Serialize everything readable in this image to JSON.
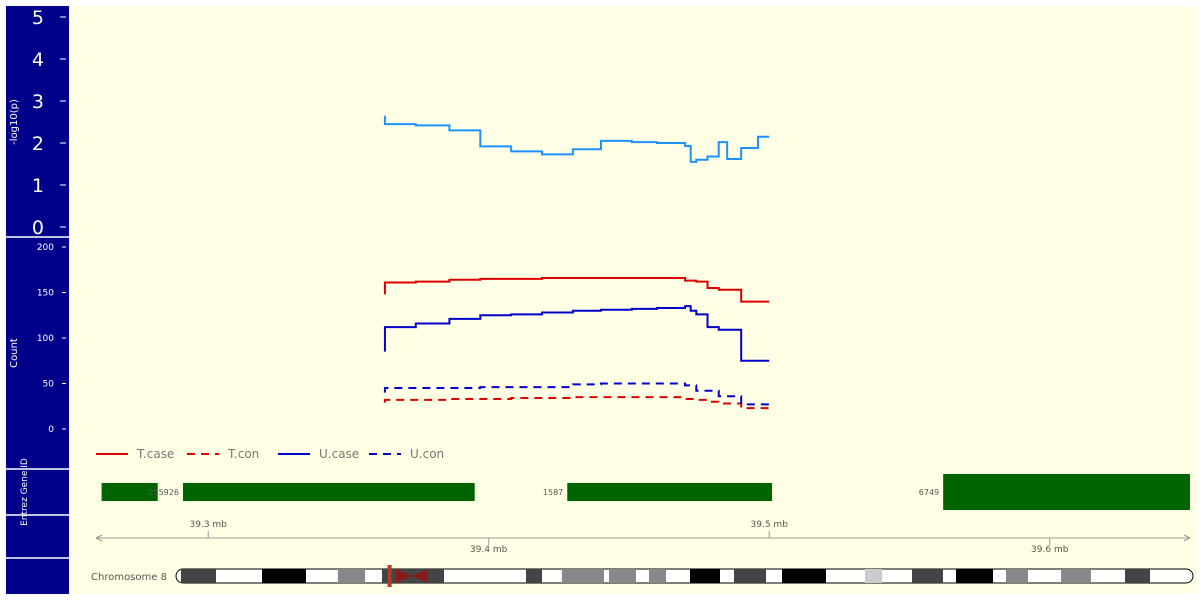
{
  "colors": {
    "panel_bg": "#FFFFE5",
    "sidebar_bg": "#00008B",
    "pval_line": "#1E90FF",
    "red": "#DD0000",
    "blue": "#0000CC",
    "gene_fill": "#006400",
    "centromere": "#8B1A1A"
  },
  "chart_data": [
    {
      "type": "line",
      "panel": "pvalue",
      "ylabel": "-log10(p)",
      "ylim": [
        0,
        5
      ],
      "yticks": [
        "0",
        "1",
        "2",
        "3",
        "4",
        "5"
      ],
      "series": [
        {
          "x": [
            39.363,
            39.363,
            39.374,
            39.386,
            39.397,
            39.408,
            39.419,
            39.43,
            39.44,
            39.451,
            39.46,
            39.47,
            39.472,
            39.474,
            39.478,
            39.482,
            39.485,
            39.49,
            39.496,
            39.5
          ],
          "y": [
            2.65,
            2.45,
            2.42,
            2.3,
            1.92,
            1.8,
            1.73,
            1.85,
            2.05,
            2.02,
            2.0,
            1.93,
            1.55,
            1.6,
            1.68,
            2.02,
            1.62,
            1.88,
            2.15,
            2.15
          ]
        }
      ]
    },
    {
      "type": "line",
      "panel": "counts",
      "ylabel": "Count",
      "ylim": [
        0,
        200
      ],
      "yticks": [
        "0",
        "50",
        "100",
        "150",
        "200"
      ],
      "series": [
        {
          "name": "T.case",
          "x": [
            39.363,
            39.363,
            39.374,
            39.386,
            39.397,
            39.408,
            39.419,
            39.43,
            39.44,
            39.451,
            39.46,
            39.47,
            39.474,
            39.478,
            39.482,
            39.49,
            39.5
          ],
          "y": [
            148,
            161,
            162,
            164,
            165,
            165,
            166,
            166,
            166,
            166,
            166,
            163,
            162,
            155,
            153,
            140,
            140
          ]
        },
        {
          "name": "T.con",
          "x": [
            39.363,
            39.363,
            39.374,
            39.386,
            39.397,
            39.408,
            39.419,
            39.43,
            39.44,
            39.451,
            39.46,
            39.47,
            39.474,
            39.478,
            39.482,
            39.49,
            39.5
          ],
          "y": [
            29,
            32,
            32,
            33,
            33,
            34,
            34,
            35,
            35,
            35,
            35,
            33,
            32,
            30,
            28,
            23,
            23
          ]
        },
        {
          "name": "U.case",
          "x": [
            39.363,
            39.363,
            39.374,
            39.386,
            39.397,
            39.408,
            39.419,
            39.43,
            39.44,
            39.451,
            39.46,
            39.47,
            39.472,
            39.474,
            39.478,
            39.482,
            39.49,
            39.49,
            39.5
          ],
          "y": [
            85,
            112,
            116,
            121,
            125,
            126,
            128,
            130,
            131,
            132,
            133,
            135,
            130,
            126,
            112,
            109,
            109,
            75,
            75
          ]
        },
        {
          "name": "U.con",
          "x": [
            39.363,
            39.363,
            39.374,
            39.386,
            39.397,
            39.408,
            39.419,
            39.43,
            39.44,
            39.451,
            39.46,
            39.47,
            39.474,
            39.478,
            39.482,
            39.49,
            39.5
          ],
          "y": [
            40,
            45,
            45,
            45,
            46,
            46,
            46,
            49,
            50,
            50,
            50,
            48,
            42,
            42,
            36,
            27,
            27
          ]
        }
      ],
      "legend": [
        "T.case",
        "T.con",
        "U.case",
        "U.con"
      ],
      "legend_placement": "bottom-left"
    }
  ],
  "genes": {
    "label": "Entrez Gene ID",
    "items": [
      {
        "id": "",
        "start": 39.262,
        "end": 39.282,
        "row": 0
      },
      {
        "id": "255926",
        "start": 39.291,
        "end": 39.395,
        "row": 0
      },
      {
        "id": "1587",
        "start": 39.428,
        "end": 39.501,
        "row": 0
      },
      {
        "id": "6749",
        "start": 39.562,
        "end": 39.65,
        "row": 1
      }
    ]
  },
  "axis": {
    "xlim": [
      39.26,
      39.65
    ],
    "top_ticks": [
      {
        "value": 39.3,
        "label": "39.3 mb"
      },
      {
        "value": 39.5,
        "label": "39.5 mb"
      }
    ],
    "bottom_ticks": [
      {
        "value": 39.4,
        "label": "39.4 mb"
      },
      {
        "value": 39.6,
        "label": "39.6 mb"
      }
    ]
  },
  "chromosome": {
    "label": "Chromosome 8",
    "centromere_fraction": 0.232,
    "highlight_fraction": 0.21
  }
}
